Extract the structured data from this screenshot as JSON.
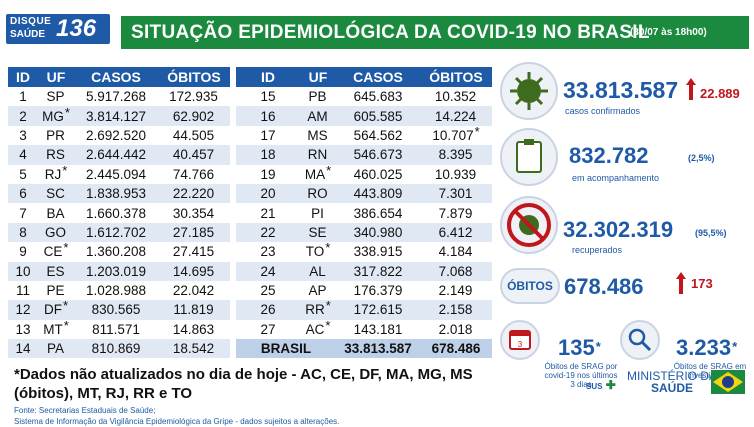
{
  "logo": {
    "line1": "DISQUE",
    "line2": "SAÚDE",
    "number": "136"
  },
  "title": "SITUAÇÃO EPIDEMIOLÓGICA DA COVID-19 NO BRASIL",
  "date": "(30/07 às 18h00)",
  "table_headers": [
    "ID",
    "UF",
    "CASOS",
    "ÓBITOS"
  ],
  "left_rows": [
    {
      "id": "1",
      "uf": "SP",
      "casos": "5.917.268",
      "obitos": "172.935",
      "uf_ast": "",
      "ob_ast": ""
    },
    {
      "id": "2",
      "uf": "MG",
      "casos": "3.814.127",
      "obitos": "62.902",
      "uf_ast": "*",
      "ob_ast": ""
    },
    {
      "id": "3",
      "uf": "PR",
      "casos": "2.692.520",
      "obitos": "44.505",
      "uf_ast": "",
      "ob_ast": ""
    },
    {
      "id": "4",
      "uf": "RS",
      "casos": "2.644.442",
      "obitos": "40.457",
      "uf_ast": "",
      "ob_ast": ""
    },
    {
      "id": "5",
      "uf": "RJ",
      "casos": "2.445.094",
      "obitos": "74.766",
      "uf_ast": "*",
      "ob_ast": ""
    },
    {
      "id": "6",
      "uf": "SC",
      "casos": "1.838.953",
      "obitos": "22.220",
      "uf_ast": "",
      "ob_ast": ""
    },
    {
      "id": "7",
      "uf": "BA",
      "casos": "1.660.378",
      "obitos": "30.354",
      "uf_ast": "",
      "ob_ast": ""
    },
    {
      "id": "8",
      "uf": "GO",
      "casos": "1.612.702",
      "obitos": "27.185",
      "uf_ast": "",
      "ob_ast": ""
    },
    {
      "id": "9",
      "uf": "CE",
      "casos": "1.360.208",
      "obitos": "27.415",
      "uf_ast": "*",
      "ob_ast": ""
    },
    {
      "id": "10",
      "uf": "ES",
      "casos": "1.203.019",
      "obitos": "14.695",
      "uf_ast": "",
      "ob_ast": ""
    },
    {
      "id": "11",
      "uf": "PE",
      "casos": "1.028.988",
      "obitos": "22.042",
      "uf_ast": "",
      "ob_ast": ""
    },
    {
      "id": "12",
      "uf": "DF",
      "casos": "830.565",
      "obitos": "11.819",
      "uf_ast": "*",
      "ob_ast": ""
    },
    {
      "id": "13",
      "uf": "MT",
      "casos": "811.571",
      "obitos": "14.863",
      "uf_ast": "*",
      "ob_ast": ""
    },
    {
      "id": "14",
      "uf": "PA",
      "casos": "810.869",
      "obitos": "18.542",
      "uf_ast": "",
      "ob_ast": ""
    }
  ],
  "right_rows": [
    {
      "id": "15",
      "uf": "PB",
      "casos": "645.683",
      "obitos": "10.352",
      "uf_ast": "",
      "ob_ast": ""
    },
    {
      "id": "16",
      "uf": "AM",
      "casos": "605.585",
      "obitos": "14.224",
      "uf_ast": "",
      "ob_ast": ""
    },
    {
      "id": "17",
      "uf": "MS",
      "casos": "564.562",
      "obitos": "10.707",
      "uf_ast": "",
      "ob_ast": "*"
    },
    {
      "id": "18",
      "uf": "RN",
      "casos": "546.673",
      "obitos": "8.395",
      "uf_ast": "",
      "ob_ast": ""
    },
    {
      "id": "19",
      "uf": "MA",
      "casos": "460.025",
      "obitos": "10.939",
      "uf_ast": "*",
      "ob_ast": ""
    },
    {
      "id": "20",
      "uf": "RO",
      "casos": "443.809",
      "obitos": "7.301",
      "uf_ast": "",
      "ob_ast": ""
    },
    {
      "id": "21",
      "uf": "PI",
      "casos": "386.654",
      "obitos": "7.879",
      "uf_ast": "",
      "ob_ast": ""
    },
    {
      "id": "22",
      "uf": "SE",
      "casos": "340.980",
      "obitos": "6.412",
      "uf_ast": "",
      "ob_ast": ""
    },
    {
      "id": "23",
      "uf": "TO",
      "casos": "338.915",
      "obitos": "4.184",
      "uf_ast": "*",
      "ob_ast": ""
    },
    {
      "id": "24",
      "uf": "AL",
      "casos": "317.822",
      "obitos": "7.068",
      "uf_ast": "",
      "ob_ast": ""
    },
    {
      "id": "25",
      "uf": "AP",
      "casos": "176.379",
      "obitos": "2.149",
      "uf_ast": "",
      "ob_ast": ""
    },
    {
      "id": "26",
      "uf": "RR",
      "casos": "172.615",
      "obitos": "2.158",
      "uf_ast": "*",
      "ob_ast": ""
    },
    {
      "id": "27",
      "uf": "AC",
      "casos": "143.181",
      "obitos": "2.018",
      "uf_ast": "*",
      "ob_ast": ""
    }
  ],
  "brasil": {
    "label": "BRASIL",
    "casos": "33.813.587",
    "obitos": "678.486"
  },
  "stats": {
    "confirmados": {
      "value": "33.813.587",
      "label": "casos confirmados",
      "delta": "22.889"
    },
    "acompanhamento": {
      "value": "832.782",
      "label": "em acompanhamento",
      "pct": "(2,5%)"
    },
    "recuperados": {
      "value": "32.302.319",
      "label": "recuperados",
      "pct": "(95,5%)"
    },
    "obitos": {
      "badge": "ÓBITOS",
      "value": "678.486",
      "delta": "173"
    },
    "srag_covid": {
      "value": "135",
      "ast": "*",
      "label1": "Óbitos de SRAG por",
      "label2": "covid-19 nos últimos",
      "label3": "3 dias",
      "cal": "3"
    },
    "srag_inv": {
      "value": "3.233",
      "ast": "*",
      "label1": "Óbitos de SRAG em",
      "label2": "investigação"
    }
  },
  "note_line1": "*Dados não atualizados no dia de hoje - AC, CE, DF, MA, MG, MS",
  "note_line2": "(óbitos), MT, RJ, RR e TO",
  "source_line1": "Fonte: Secretarias Estaduais de Saúde;",
  "source_line2": "Sistema de Informação da Vigilância Epidemiológica da Gripe - dados sujeitos a alterações.",
  "footer": {
    "sus": "SUS",
    "ministerio1": "MINISTÉRIO DA",
    "ministerio2": "SAÚDE"
  },
  "colors": {
    "blue": "#1f5aa6",
    "green": "#1b8a3e",
    "red": "#c0161c",
    "stripe": "#dfe8f3"
  }
}
